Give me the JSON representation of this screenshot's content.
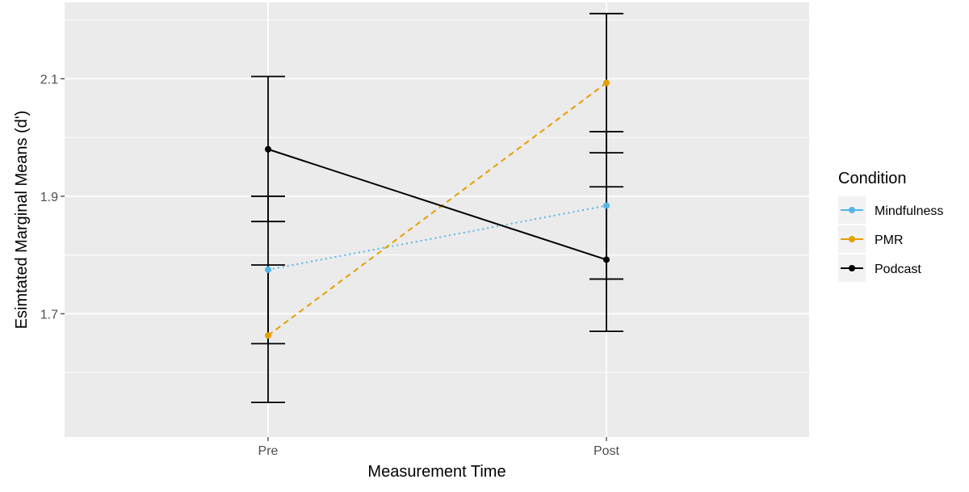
{
  "chart_data": {
    "type": "line",
    "title": "",
    "xlabel": "Measurement Time",
    "ylabel": "Esimtated Marginal Means (d')",
    "categories": [
      "Pre",
      "Post"
    ],
    "ylim": [
      1.49,
      2.23
    ],
    "yticks": [
      1.7,
      1.9,
      2.1
    ],
    "ytick_labels": [
      "1.7",
      "1.9",
      "2.1"
    ],
    "grid": true,
    "legend_title": "Condition",
    "legend_position": "right",
    "series": [
      {
        "name": "Mindfulness",
        "color": "#56B4E9",
        "linestyle": "dotted",
        "values": [
          1.775,
          1.884
        ],
        "lower": [
          1.649,
          1.759
        ],
        "upper": [
          1.9,
          2.01
        ]
      },
      {
        "name": "PMR",
        "color": "#E69F00",
        "linestyle": "dashed",
        "values": [
          1.663,
          2.093
        ],
        "lower": [
          1.549,
          1.974
        ],
        "upper": [
          1.783,
          2.211
        ]
      },
      {
        "name": "Podcast",
        "color": "#000000",
        "linestyle": "solid",
        "values": [
          1.98,
          1.792
        ],
        "lower": [
          1.857,
          1.67
        ],
        "upper": [
          2.104,
          1.916
        ]
      }
    ]
  }
}
